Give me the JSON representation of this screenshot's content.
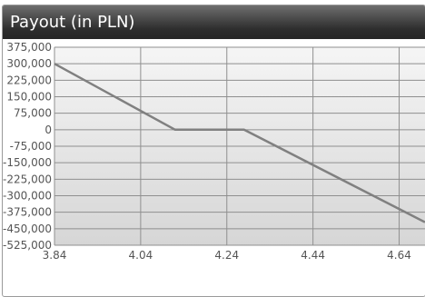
{
  "chart_data": {
    "type": "line",
    "title": "Payout (in PLN)",
    "xlabel": "",
    "ylabel": "",
    "x_ticks": [
      "3.84",
      "4.04",
      "4.24",
      "4.44",
      "4.64"
    ],
    "y_ticks": [
      "375,000",
      "300,000",
      "225,000",
      "150,000",
      "75,000",
      "0",
      "-75,000",
      "-150,000",
      "-225,000",
      "-300,000",
      "-375,000",
      "-450,000",
      "-525,000"
    ],
    "xlim": [
      3.84,
      4.7
    ],
    "ylim": [
      -525000,
      375000
    ],
    "grid": true,
    "legend": "none",
    "series": [
      {
        "x": [
          3.84,
          4.12,
          4.28,
          4.7
        ],
        "y": [
          300000,
          0,
          0,
          -420000
        ]
      }
    ],
    "colors": {
      "line": "#808080",
      "grid": "#8f8f8f",
      "plot_bg_top": "#f5f5f5",
      "plot_bg_bottom": "#d6d6d6"
    }
  }
}
